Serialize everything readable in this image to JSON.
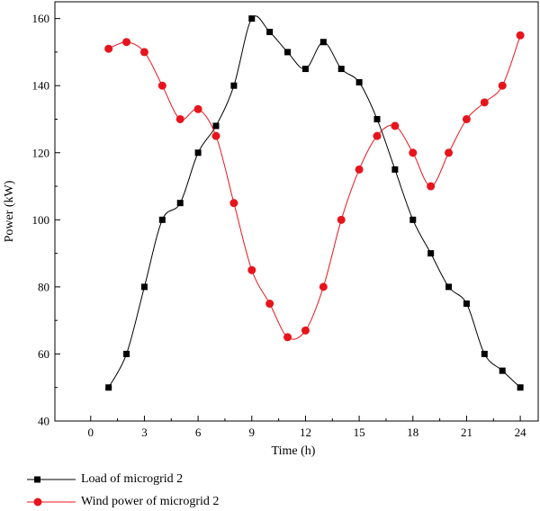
{
  "chart_data": {
    "type": "line",
    "xlabel": "Time (h)",
    "ylabel": "Power (kW)",
    "xlim": [
      -2,
      25
    ],
    "ylim": [
      40,
      165
    ],
    "xticks": [
      0,
      3,
      6,
      9,
      12,
      15,
      18,
      21,
      24
    ],
    "yticks": [
      40,
      60,
      80,
      100,
      120,
      140,
      160
    ],
    "grid": false,
    "legend_position": "bottom-left",
    "x": [
      1,
      2,
      3,
      4,
      5,
      6,
      7,
      8,
      9,
      10,
      11,
      12,
      13,
      14,
      15,
      16,
      17,
      18,
      19,
      20,
      21,
      22,
      23,
      24
    ],
    "series": [
      {
        "name": "Load of microgrid 2",
        "color": "#000000",
        "marker": "square",
        "values": [
          50,
          60,
          80,
          100,
          105,
          120,
          128,
          140,
          160,
          156,
          150,
          145,
          153,
          145,
          141,
          130,
          115,
          100,
          90,
          80,
          75,
          60,
          55,
          50
        ]
      },
      {
        "name": "Wind power of microgrid 2",
        "color": "#e8141c",
        "marker": "circle",
        "values": [
          151,
          153,
          150,
          140,
          130,
          133,
          125,
          105,
          85,
          75,
          65,
          67,
          80,
          100,
          115,
          125,
          128,
          120,
          110,
          120,
          130,
          135,
          140,
          155
        ]
      }
    ]
  }
}
